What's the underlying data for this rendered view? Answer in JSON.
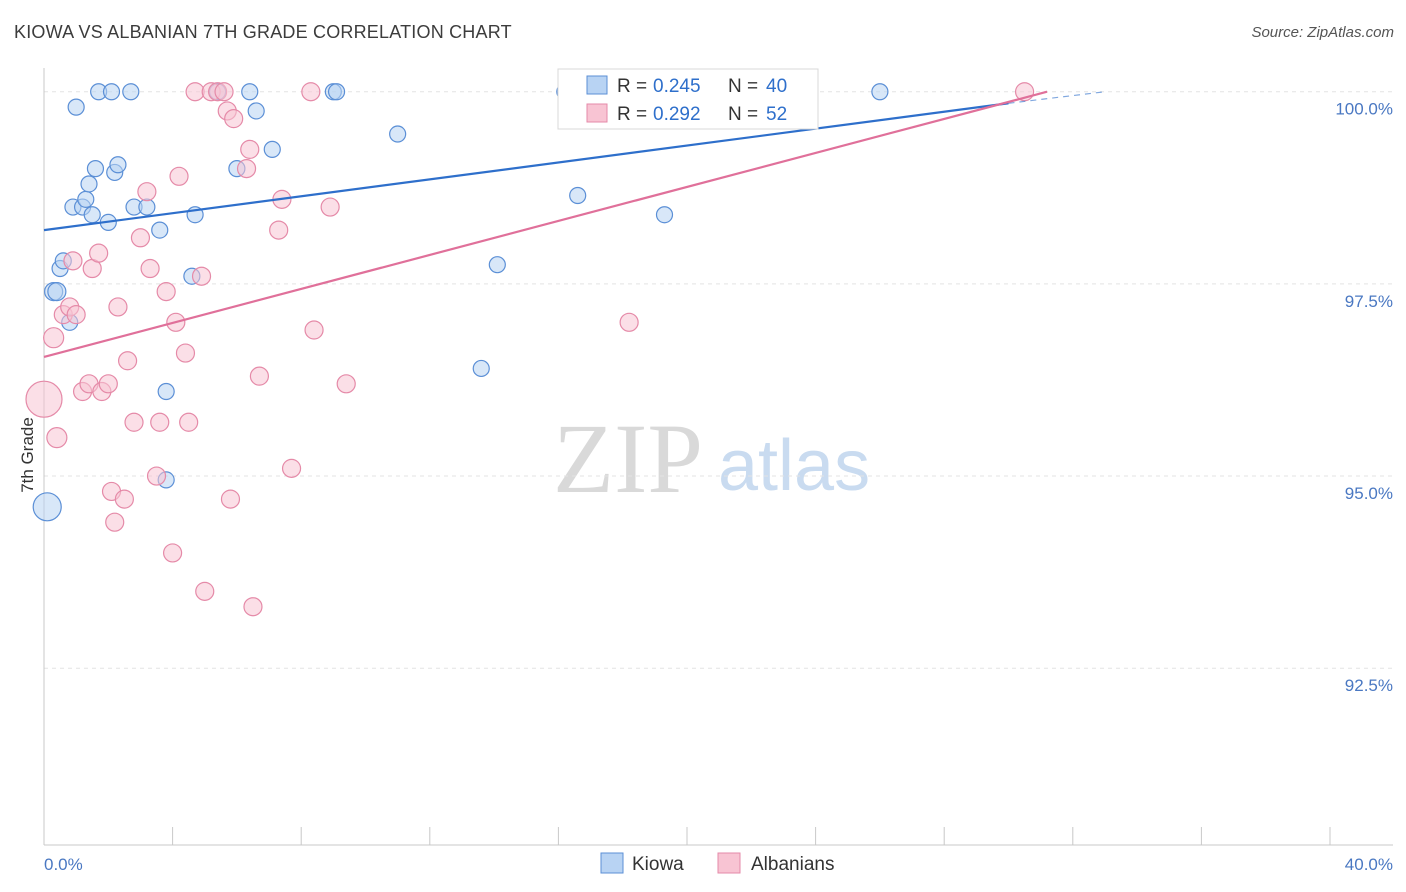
{
  "header": {
    "title": "KIOWA VS ALBANIAN 7TH GRADE CORRELATION CHART",
    "source": "Source: ZipAtlas.com"
  },
  "colors": {
    "blue": "#5b8fd6",
    "blue_fill": "#b8d3f3",
    "blue_line": "#2e6fcb",
    "pink": "#e58aa8",
    "pink_fill": "#f8c4d3",
    "pink_line": "#e0709a",
    "tick_text": "#4a78c2"
  },
  "legend": {
    "row1": {
      "r_label": "R = ",
      "r_value": "0.245",
      "n_label": "N = ",
      "n_value": "40"
    },
    "row2": {
      "r_label": "R = ",
      "r_value": "0.292",
      "n_label": "N = ",
      "n_value": "52"
    }
  },
  "watermark": {
    "zip": "ZIP",
    "atlas": "atlas"
  },
  "chart_data": {
    "type": "scatter",
    "title": "KIOWA VS ALBANIAN 7TH GRADE CORRELATION CHART",
    "xlabel": "",
    "ylabel": "7th Grade",
    "xlim": [
      0,
      40
    ],
    "ylim": [
      90.2,
      100.4
    ],
    "x_tick_labels": [
      {
        "value": 0,
        "label": "0.0%"
      },
      {
        "value": 40,
        "label": "40.0%"
      }
    ],
    "y_tick_labels": [
      {
        "value": 100,
        "label": "100.0%"
      },
      {
        "value": 97.5,
        "label": "97.5%"
      },
      {
        "value": 95,
        "label": "95.0%"
      },
      {
        "value": 92.5,
        "label": "92.5%"
      }
    ],
    "series": [
      {
        "name": "Kiowa",
        "color": "blue",
        "points": [
          [
            0.1,
            94.6,
            14
          ],
          [
            0.3,
            97.4,
            9
          ],
          [
            0.4,
            97.4,
            9
          ],
          [
            0.5,
            97.7,
            8
          ],
          [
            0.6,
            97.8,
            8
          ],
          [
            0.8,
            97.0,
            8
          ],
          [
            0.9,
            98.5,
            8
          ],
          [
            1.0,
            99.8,
            8
          ],
          [
            1.2,
            98.5,
            8
          ],
          [
            1.3,
            98.6,
            8
          ],
          [
            1.4,
            98.8,
            8
          ],
          [
            1.5,
            98.4,
            8
          ],
          [
            1.6,
            99.0,
            8
          ],
          [
            1.7,
            100.0,
            8
          ],
          [
            2.0,
            98.3,
            8
          ],
          [
            2.1,
            100.0,
            8
          ],
          [
            2.2,
            98.95,
            8
          ],
          [
            2.3,
            99.05,
            8
          ],
          [
            2.7,
            100.0,
            8
          ],
          [
            2.8,
            98.5,
            8
          ],
          [
            3.2,
            98.5,
            8
          ],
          [
            3.6,
            98.2,
            8
          ],
          [
            3.8,
            96.1,
            8
          ],
          [
            3.8,
            94.95,
            8
          ],
          [
            4.7,
            98.4,
            8
          ],
          [
            4.6,
            97.6,
            8
          ],
          [
            5.4,
            100.0,
            8
          ],
          [
            6.0,
            99.0,
            8
          ],
          [
            6.4,
            100.0,
            8
          ],
          [
            6.6,
            99.75,
            8
          ],
          [
            7.1,
            99.25,
            8
          ],
          [
            9.0,
            100.0,
            8
          ],
          [
            9.1,
            100.0,
            8
          ],
          [
            11.0,
            99.45,
            8
          ],
          [
            13.6,
            96.4,
            8
          ],
          [
            14.1,
            97.75,
            8
          ],
          [
            16.2,
            100.0,
            8
          ],
          [
            16.6,
            98.65,
            8
          ],
          [
            19.3,
            98.4,
            8
          ],
          [
            26.0,
            100.0,
            8
          ]
        ]
      },
      {
        "name": "Albanians",
        "color": "pink",
        "points": [
          [
            0.0,
            96.0,
            18
          ],
          [
            0.3,
            96.8,
            10
          ],
          [
            0.4,
            95.5,
            10
          ],
          [
            0.6,
            97.1,
            9
          ],
          [
            0.8,
            97.2,
            9
          ],
          [
            0.9,
            97.8,
            9
          ],
          [
            1.0,
            97.1,
            9
          ],
          [
            1.2,
            96.1,
            9
          ],
          [
            1.4,
            96.2,
            9
          ],
          [
            1.5,
            97.7,
            9
          ],
          [
            1.7,
            97.9,
            9
          ],
          [
            1.8,
            96.1,
            9
          ],
          [
            2.0,
            96.2,
            9
          ],
          [
            2.1,
            94.8,
            9
          ],
          [
            2.2,
            94.4,
            9
          ],
          [
            2.3,
            97.2,
            9
          ],
          [
            2.5,
            94.7,
            9
          ],
          [
            2.6,
            96.5,
            9
          ],
          [
            2.8,
            95.7,
            9
          ],
          [
            3.0,
            98.1,
            9
          ],
          [
            3.2,
            98.7,
            9
          ],
          [
            3.3,
            97.7,
            9
          ],
          [
            3.5,
            95.0,
            9
          ],
          [
            3.6,
            95.7,
            9
          ],
          [
            3.8,
            97.4,
            9
          ],
          [
            4.0,
            94.0,
            9
          ],
          [
            4.1,
            97.0,
            9
          ],
          [
            4.2,
            98.9,
            9
          ],
          [
            4.4,
            96.6,
            9
          ],
          [
            4.5,
            95.7,
            9
          ],
          [
            4.7,
            100.0,
            9
          ],
          [
            4.9,
            97.6,
            9
          ],
          [
            5.0,
            93.5,
            9
          ],
          [
            5.2,
            100.0,
            9
          ],
          [
            5.4,
            100.0,
            9
          ],
          [
            5.6,
            100.0,
            9
          ],
          [
            5.7,
            99.75,
            9
          ],
          [
            5.8,
            94.7,
            9
          ],
          [
            5.9,
            99.65,
            9
          ],
          [
            6.3,
            99.0,
            9
          ],
          [
            6.4,
            99.25,
            9
          ],
          [
            6.5,
            93.3,
            9
          ],
          [
            6.7,
            96.3,
            9
          ],
          [
            7.3,
            98.2,
            9
          ],
          [
            7.4,
            98.6,
            9
          ],
          [
            7.7,
            95.1,
            9
          ],
          [
            8.3,
            100.0,
            9
          ],
          [
            8.4,
            96.9,
            9
          ],
          [
            8.9,
            98.5,
            9
          ],
          [
            9.4,
            96.2,
            9
          ],
          [
            18.2,
            97.0,
            9
          ],
          [
            30.5,
            100.0,
            9
          ]
        ]
      }
    ],
    "trend_lines": [
      {
        "series": "Kiowa",
        "x": [
          0,
          30
        ],
        "y": [
          98.2,
          99.85
        ],
        "dashed_extension": [
          30,
          33
        ],
        "dashed_y": [
          99.85,
          100.0
        ]
      },
      {
        "series": "Albanians",
        "x": [
          0,
          31.2
        ],
        "y": [
          96.55,
          100.0
        ]
      }
    ],
    "bottom_legend": [
      "Kiowa",
      "Albanians"
    ]
  }
}
